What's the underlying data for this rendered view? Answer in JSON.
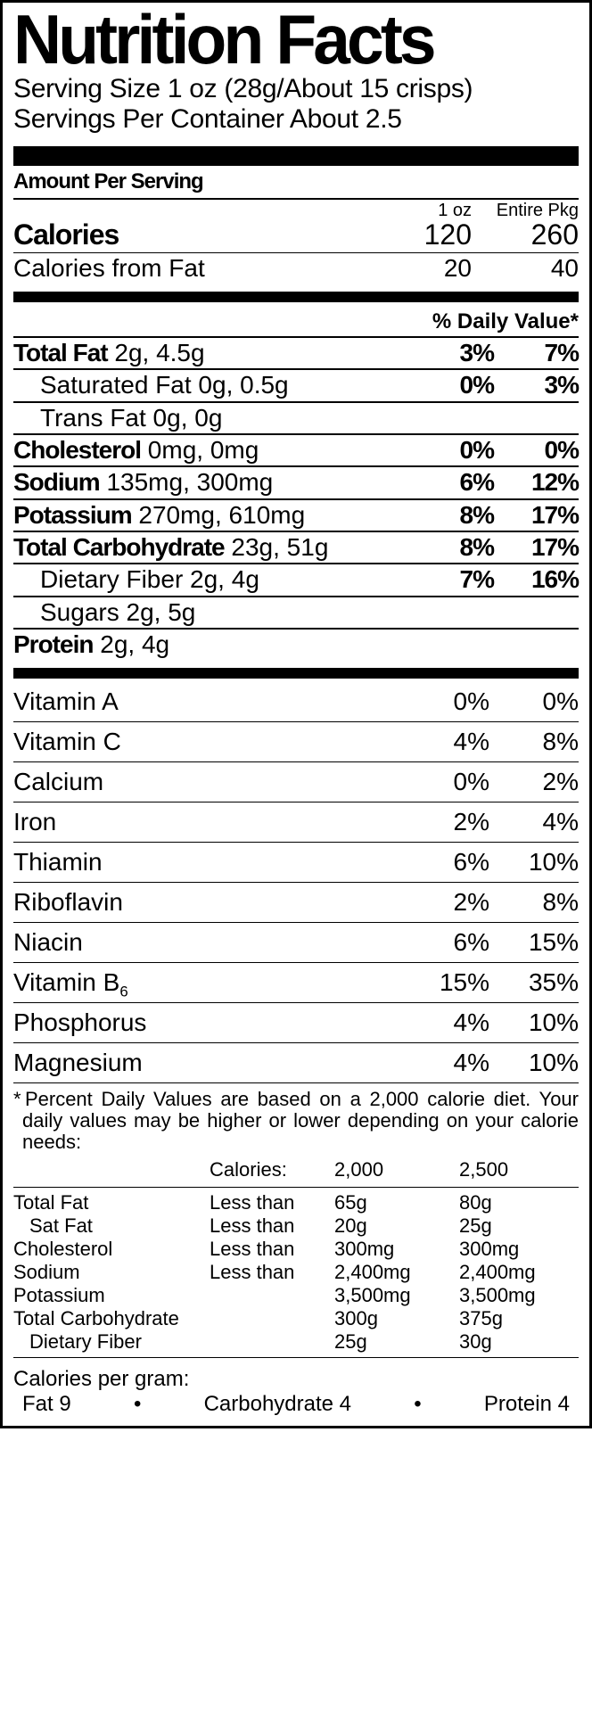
{
  "title": "Nutrition Facts",
  "serving": {
    "size": "Serving Size 1 oz  (28g/About 15 crisps)",
    "per": "Servings Per Container  About 2.5"
  },
  "aps": "Amount Per Serving",
  "colhdr": {
    "c1": "1 oz",
    "c2": "Entire Pkg"
  },
  "calories": {
    "label": "Calories",
    "c1": "120",
    "c2": "260"
  },
  "calfat": {
    "label": "Calories from Fat",
    "c1": "20",
    "c2": "40"
  },
  "dvhdr": "% Daily Value*",
  "nutrients": [
    {
      "name": "Total Fat",
      "amt": " 2g, 4.5g",
      "c1": "3%",
      "c2": "7%",
      "bold": true,
      "indent": false
    },
    {
      "name": "Saturated Fat",
      "amt": " 0g, 0.5g",
      "c1": "0%",
      "c2": "3%",
      "bold": false,
      "indent": true
    },
    {
      "name": "Trans Fat",
      "amt": " 0g, 0g",
      "c1": "",
      "c2": "",
      "bold": false,
      "indent": true
    },
    {
      "name": "Cholesterol",
      "amt": " 0mg, 0mg",
      "c1": "0%",
      "c2": "0%",
      "bold": true,
      "indent": false
    },
    {
      "name": "Sodium",
      "amt": " 135mg, 300mg",
      "c1": "6%",
      "c2": "12%",
      "bold": true,
      "indent": false
    },
    {
      "name": "Potassium",
      "amt": " 270mg, 610mg",
      "c1": "8%",
      "c2": "17%",
      "bold": true,
      "indent": false
    },
    {
      "name": "Total Carbohydrate",
      "amt": " 23g, 51g",
      "c1": "8%",
      "c2": "17%",
      "bold": true,
      "indent": false
    },
    {
      "name": "Dietary Fiber",
      "amt": " 2g, 4g",
      "c1": "7%",
      "c2": "16%",
      "bold": false,
      "indent": true
    },
    {
      "name": "Sugars",
      "amt": " 2g, 5g",
      "c1": "",
      "c2": "",
      "bold": false,
      "indent": true
    },
    {
      "name": "Protein",
      "amt": " 2g, 4g",
      "c1": "",
      "c2": "",
      "bold": true,
      "indent": false
    }
  ],
  "vitamins": [
    {
      "name": "Vitamin A",
      "c1": "0%",
      "c2": "0%"
    },
    {
      "name": "Vitamin C",
      "c1": "4%",
      "c2": "8%"
    },
    {
      "name": "Calcium",
      "c1": "0%",
      "c2": "2%"
    },
    {
      "name": "Iron",
      "c1": "2%",
      "c2": "4%"
    },
    {
      "name": "Thiamin",
      "c1": "6%",
      "c2": "10%"
    },
    {
      "name": "Riboflavin",
      "c1": "2%",
      "c2": "8%"
    },
    {
      "name": "Niacin",
      "c1": "6%",
      "c2": "15%"
    },
    {
      "name": "Vitamin B",
      "sub": "6",
      "c1": "15%",
      "c2": "35%"
    },
    {
      "name": "Phosphorus",
      "c1": "4%",
      "c2": "10%"
    },
    {
      "name": "Magnesium",
      "c1": "4%",
      "c2": "10%"
    }
  ],
  "footnote": "* Percent Daily Values are based on a 2,000 calorie diet. Your daily values may be higher or lower depending on your calorie needs:",
  "foot_hdr": [
    "",
    "Calories:",
    "2,000",
    "2,500"
  ],
  "foot_rows": [
    {
      "cells": [
        "Total Fat",
        "Less than",
        "65g",
        "80g"
      ],
      "indent": false
    },
    {
      "cells": [
        "Sat Fat",
        "Less than",
        "20g",
        "25g"
      ],
      "indent": true
    },
    {
      "cells": [
        "Cholesterol",
        "Less than",
        "300mg",
        "300mg"
      ],
      "indent": false
    },
    {
      "cells": [
        "Sodium",
        "Less than",
        "2,400mg",
        "2,400mg"
      ],
      "indent": false
    },
    {
      "cells": [
        "Potassium",
        "",
        "3,500mg",
        "3,500mg"
      ],
      "indent": false
    },
    {
      "cells": [
        "Total Carbohydrate",
        "",
        "300g",
        "375g"
      ],
      "indent": false
    },
    {
      "cells": [
        "Dietary Fiber",
        "",
        "25g",
        "30g"
      ],
      "indent": true
    }
  ],
  "cpg": {
    "title": "Calories per gram:",
    "fat": "Fat  9",
    "carb": "Carbohydrate  4",
    "prot": "Protein  4"
  }
}
